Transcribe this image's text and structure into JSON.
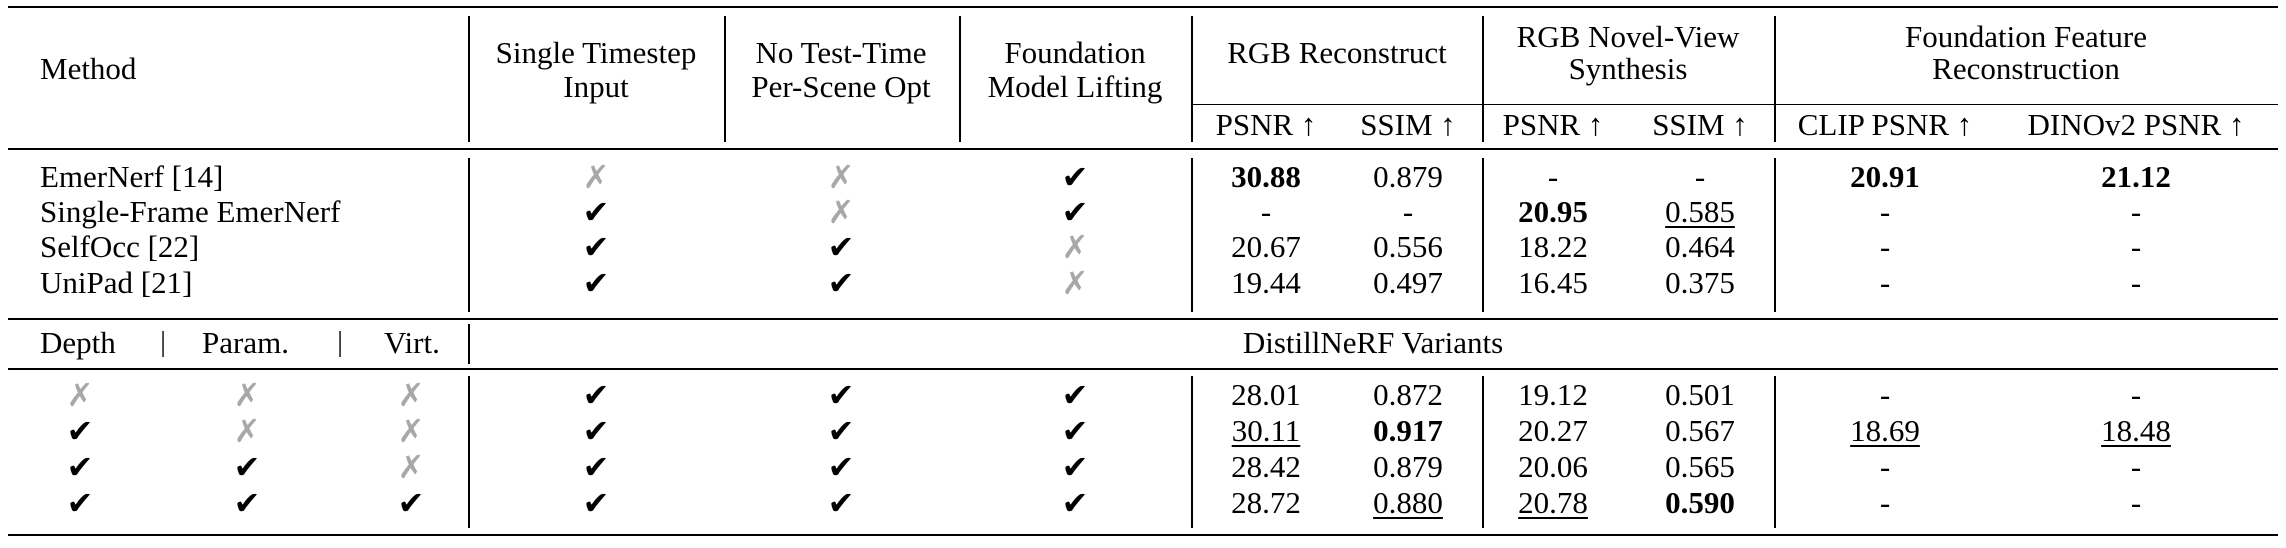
{
  "table": {
    "columns": {
      "method": "Method",
      "single_timestep": "Single Timestep Input",
      "single_timestep_l1": "Single Timestep",
      "single_timestep_l2": "Input",
      "no_test_time_l1": "No Test-Time",
      "no_test_time_l2": "Per-Scene Opt",
      "foundation_l1": "Foundation",
      "foundation_l2": "Model Lifting",
      "rgb_recon": "RGB Reconstruct",
      "rgb_nvs_l1": "RGB Novel-View",
      "rgb_nvs_l2": "Synthesis",
      "ffr_l1": "Foundation Feature",
      "ffr_l2": "Reconstruction",
      "psnr": "PSNR ↑",
      "ssim": "SSIM ↑",
      "clip_psnr": "CLIP PSNR ↑",
      "dino_psnr": "DINOv2 PSNR ↑"
    },
    "baselines": [
      {
        "method": "EmerNerf [14]",
        "single": "✗",
        "notest": "✗",
        "found": "✔",
        "rgb_psnr": "30.88",
        "rgb_ssim": "0.879",
        "nvs_psnr": "-",
        "nvs_ssim": "-",
        "clip": "20.91",
        "dino": "21.12"
      },
      {
        "method": "Single-Frame EmerNerf",
        "single": "✔",
        "notest": "✗",
        "found": "✔",
        "rgb_psnr": "-",
        "rgb_ssim": "-",
        "nvs_psnr": "20.95",
        "nvs_ssim": "0.585",
        "clip": "-",
        "dino": "-"
      },
      {
        "method": "SelfOcc [22]",
        "single": "✔",
        "notest": "✔",
        "found": "✗",
        "rgb_psnr": "20.67",
        "rgb_ssim": "0.556",
        "nvs_psnr": "18.22",
        "nvs_ssim": "0.464",
        "clip": "-",
        "dino": "-"
      },
      {
        "method": "UniPad [21]",
        "single": "✔",
        "notest": "✔",
        "found": "✗",
        "rgb_psnr": "19.44",
        "rgb_ssim": "0.497",
        "nvs_psnr": "16.45",
        "nvs_ssim": "0.375",
        "clip": "-",
        "dino": "-"
      }
    ],
    "variants_header": {
      "depth": "Depth",
      "param": "Param.",
      "virt": "Virt.",
      "sep": "|",
      "title": "DistillNeRF Variants"
    },
    "variants": [
      {
        "depth": "✗",
        "param": "✗",
        "virt": "✗",
        "single": "✔",
        "notest": "✔",
        "found": "✔",
        "rgb_psnr": "28.01",
        "rgb_ssim": "0.872",
        "nvs_psnr": "19.12",
        "nvs_ssim": "0.501",
        "clip": "-",
        "dino": "-"
      },
      {
        "depth": "✔",
        "param": "✗",
        "virt": "✗",
        "single": "✔",
        "notest": "✔",
        "found": "✔",
        "rgb_psnr": "30.11",
        "rgb_ssim": "0.917",
        "nvs_psnr": "20.27",
        "nvs_ssim": "0.567",
        "clip": "18.69",
        "dino": "18.48"
      },
      {
        "depth": "✔",
        "param": "✔",
        "virt": "✗",
        "single": "✔",
        "notest": "✔",
        "found": "✔",
        "rgb_psnr": "28.42",
        "rgb_ssim": "0.879",
        "nvs_psnr": "20.06",
        "nvs_ssim": "0.565",
        "clip": "-",
        "dino": "-"
      },
      {
        "depth": "✔",
        "param": "✔",
        "virt": "✔",
        "single": "✔",
        "notest": "✔",
        "found": "✔",
        "rgb_psnr": "28.72",
        "rgb_ssim": "0.880",
        "nvs_psnr": "20.78",
        "nvs_ssim": "0.590",
        "clip": "-",
        "dino": "-"
      }
    ]
  }
}
